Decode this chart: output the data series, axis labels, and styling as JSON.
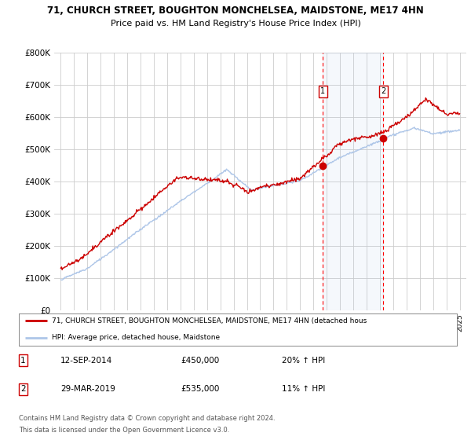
{
  "title1": "71, CHURCH STREET, BOUGHTON MONCHELSEA, MAIDSTONE, ME17 4HN",
  "title2": "Price paid vs. HM Land Registry's House Price Index (HPI)",
  "ylim": [
    0,
    800000
  ],
  "yticks": [
    0,
    100000,
    200000,
    300000,
    400000,
    500000,
    600000,
    700000,
    800000
  ],
  "ytick_labels": [
    "£0",
    "£100K",
    "£200K",
    "£300K",
    "£400K",
    "£500K",
    "£600K",
    "£700K",
    "£800K"
  ],
  "sale1_date": 2014.7,
  "sale1_price": 450000,
  "sale1_label": "1",
  "sale1_hpi_pct": "20% ↑ HPI",
  "sale1_date_str": "12-SEP-2014",
  "sale2_date": 2019.25,
  "sale2_price": 535000,
  "sale2_label": "2",
  "sale2_hpi_pct": "11% ↑ HPI",
  "sale2_date_str": "29-MAR-2019",
  "hpi_color": "#aec6e8",
  "price_color": "#cc0000",
  "legend_label1": "71, CHURCH STREET, BOUGHTON MONCHELSEA, MAIDSTONE, ME17 4HN (detached hous",
  "legend_label2": "HPI: Average price, detached house, Maidstone",
  "footer1": "Contains HM Land Registry data © Crown copyright and database right 2024.",
  "footer2": "This data is licensed under the Open Government Licence v3.0.",
  "background_color": "#ffffff",
  "grid_color": "#cccccc",
  "xmin": 1994.5,
  "xmax": 2025.5
}
